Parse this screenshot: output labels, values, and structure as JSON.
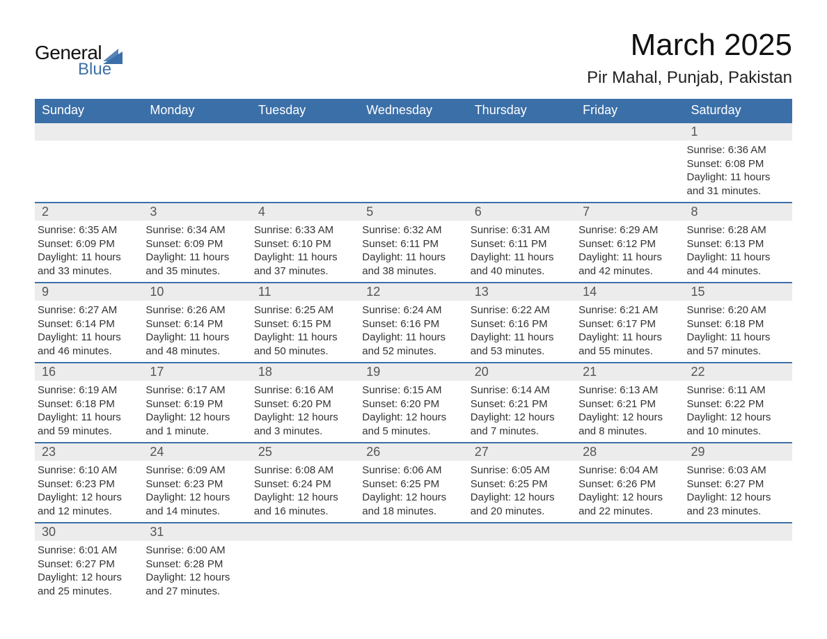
{
  "brand": {
    "word1": "General",
    "word2": "Blue",
    "sail_color": "#3b6fa8"
  },
  "title": "March 2025",
  "location": "Pir Mahal, Punjab, Pakistan",
  "colors": {
    "header_bg": "#3b6fa8",
    "header_text": "#ffffff",
    "daynum_bg": "#ececec",
    "border": "#3b6fa8",
    "body_text": "#333333",
    "background": "#ffffff"
  },
  "typography": {
    "title_fontsize": 44,
    "location_fontsize": 24,
    "weekday_fontsize": 18,
    "daynum_fontsize": 18,
    "body_fontsize": 15
  },
  "weekdays": [
    "Sunday",
    "Monday",
    "Tuesday",
    "Wednesday",
    "Thursday",
    "Friday",
    "Saturday"
  ],
  "weeks": [
    [
      null,
      null,
      null,
      null,
      null,
      null,
      {
        "n": "1",
        "sunrise": "6:36 AM",
        "sunset": "6:08 PM",
        "daylight": "11 hours and 31 minutes."
      }
    ],
    [
      {
        "n": "2",
        "sunrise": "6:35 AM",
        "sunset": "6:09 PM",
        "daylight": "11 hours and 33 minutes."
      },
      {
        "n": "3",
        "sunrise": "6:34 AM",
        "sunset": "6:09 PM",
        "daylight": "11 hours and 35 minutes."
      },
      {
        "n": "4",
        "sunrise": "6:33 AM",
        "sunset": "6:10 PM",
        "daylight": "11 hours and 37 minutes."
      },
      {
        "n": "5",
        "sunrise": "6:32 AM",
        "sunset": "6:11 PM",
        "daylight": "11 hours and 38 minutes."
      },
      {
        "n": "6",
        "sunrise": "6:31 AM",
        "sunset": "6:11 PM",
        "daylight": "11 hours and 40 minutes."
      },
      {
        "n": "7",
        "sunrise": "6:29 AM",
        "sunset": "6:12 PM",
        "daylight": "11 hours and 42 minutes."
      },
      {
        "n": "8",
        "sunrise": "6:28 AM",
        "sunset": "6:13 PM",
        "daylight": "11 hours and 44 minutes."
      }
    ],
    [
      {
        "n": "9",
        "sunrise": "6:27 AM",
        "sunset": "6:14 PM",
        "daylight": "11 hours and 46 minutes."
      },
      {
        "n": "10",
        "sunrise": "6:26 AM",
        "sunset": "6:14 PM",
        "daylight": "11 hours and 48 minutes."
      },
      {
        "n": "11",
        "sunrise": "6:25 AM",
        "sunset": "6:15 PM",
        "daylight": "11 hours and 50 minutes."
      },
      {
        "n": "12",
        "sunrise": "6:24 AM",
        "sunset": "6:16 PM",
        "daylight": "11 hours and 52 minutes."
      },
      {
        "n": "13",
        "sunrise": "6:22 AM",
        "sunset": "6:16 PM",
        "daylight": "11 hours and 53 minutes."
      },
      {
        "n": "14",
        "sunrise": "6:21 AM",
        "sunset": "6:17 PM",
        "daylight": "11 hours and 55 minutes."
      },
      {
        "n": "15",
        "sunrise": "6:20 AM",
        "sunset": "6:18 PM",
        "daylight": "11 hours and 57 minutes."
      }
    ],
    [
      {
        "n": "16",
        "sunrise": "6:19 AM",
        "sunset": "6:18 PM",
        "daylight": "11 hours and 59 minutes."
      },
      {
        "n": "17",
        "sunrise": "6:17 AM",
        "sunset": "6:19 PM",
        "daylight": "12 hours and 1 minute."
      },
      {
        "n": "18",
        "sunrise": "6:16 AM",
        "sunset": "6:20 PM",
        "daylight": "12 hours and 3 minutes."
      },
      {
        "n": "19",
        "sunrise": "6:15 AM",
        "sunset": "6:20 PM",
        "daylight": "12 hours and 5 minutes."
      },
      {
        "n": "20",
        "sunrise": "6:14 AM",
        "sunset": "6:21 PM",
        "daylight": "12 hours and 7 minutes."
      },
      {
        "n": "21",
        "sunrise": "6:13 AM",
        "sunset": "6:21 PM",
        "daylight": "12 hours and 8 minutes."
      },
      {
        "n": "22",
        "sunrise": "6:11 AM",
        "sunset": "6:22 PM",
        "daylight": "12 hours and 10 minutes."
      }
    ],
    [
      {
        "n": "23",
        "sunrise": "6:10 AM",
        "sunset": "6:23 PM",
        "daylight": "12 hours and 12 minutes."
      },
      {
        "n": "24",
        "sunrise": "6:09 AM",
        "sunset": "6:23 PM",
        "daylight": "12 hours and 14 minutes."
      },
      {
        "n": "25",
        "sunrise": "6:08 AM",
        "sunset": "6:24 PM",
        "daylight": "12 hours and 16 minutes."
      },
      {
        "n": "26",
        "sunrise": "6:06 AM",
        "sunset": "6:25 PM",
        "daylight": "12 hours and 18 minutes."
      },
      {
        "n": "27",
        "sunrise": "6:05 AM",
        "sunset": "6:25 PM",
        "daylight": "12 hours and 20 minutes."
      },
      {
        "n": "28",
        "sunrise": "6:04 AM",
        "sunset": "6:26 PM",
        "daylight": "12 hours and 22 minutes."
      },
      {
        "n": "29",
        "sunrise": "6:03 AM",
        "sunset": "6:27 PM",
        "daylight": "12 hours and 23 minutes."
      }
    ],
    [
      {
        "n": "30",
        "sunrise": "6:01 AM",
        "sunset": "6:27 PM",
        "daylight": "12 hours and 25 minutes."
      },
      {
        "n": "31",
        "sunrise": "6:00 AM",
        "sunset": "6:28 PM",
        "daylight": "12 hours and 27 minutes."
      },
      null,
      null,
      null,
      null,
      null
    ]
  ],
  "labels": {
    "sunrise": "Sunrise:",
    "sunset": "Sunset:",
    "daylight": "Daylight:"
  }
}
